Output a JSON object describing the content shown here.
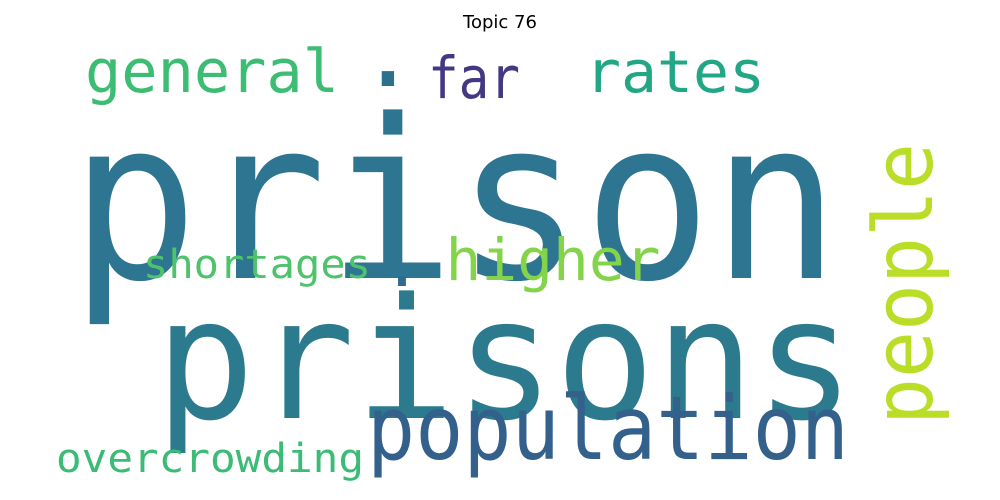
{
  "title": "Topic 76",
  "words": [
    {
      "text": "prison",
      "color": "#2e7591"
    },
    {
      "text": "prisons",
      "color": "#2c7a8e"
    },
    {
      "text": "population",
      "color": "#33618c"
    },
    {
      "text": "people",
      "color": "#bade28"
    },
    {
      "text": "higher",
      "color": "#84d44b"
    },
    {
      "text": "general",
      "color": "#3dbc74"
    },
    {
      "text": "far",
      "color": "#453882"
    },
    {
      "text": "rates",
      "color": "#22a785"
    },
    {
      "text": "shortages",
      "color": "#4ec36b"
    },
    {
      "text": "overcrowding",
      "color": "#3bbb75"
    },
    {
      "text": ".",
      "color": "#2d708e"
    },
    {
      "text": ".",
      "color": "#2f6c8e"
    }
  ]
}
